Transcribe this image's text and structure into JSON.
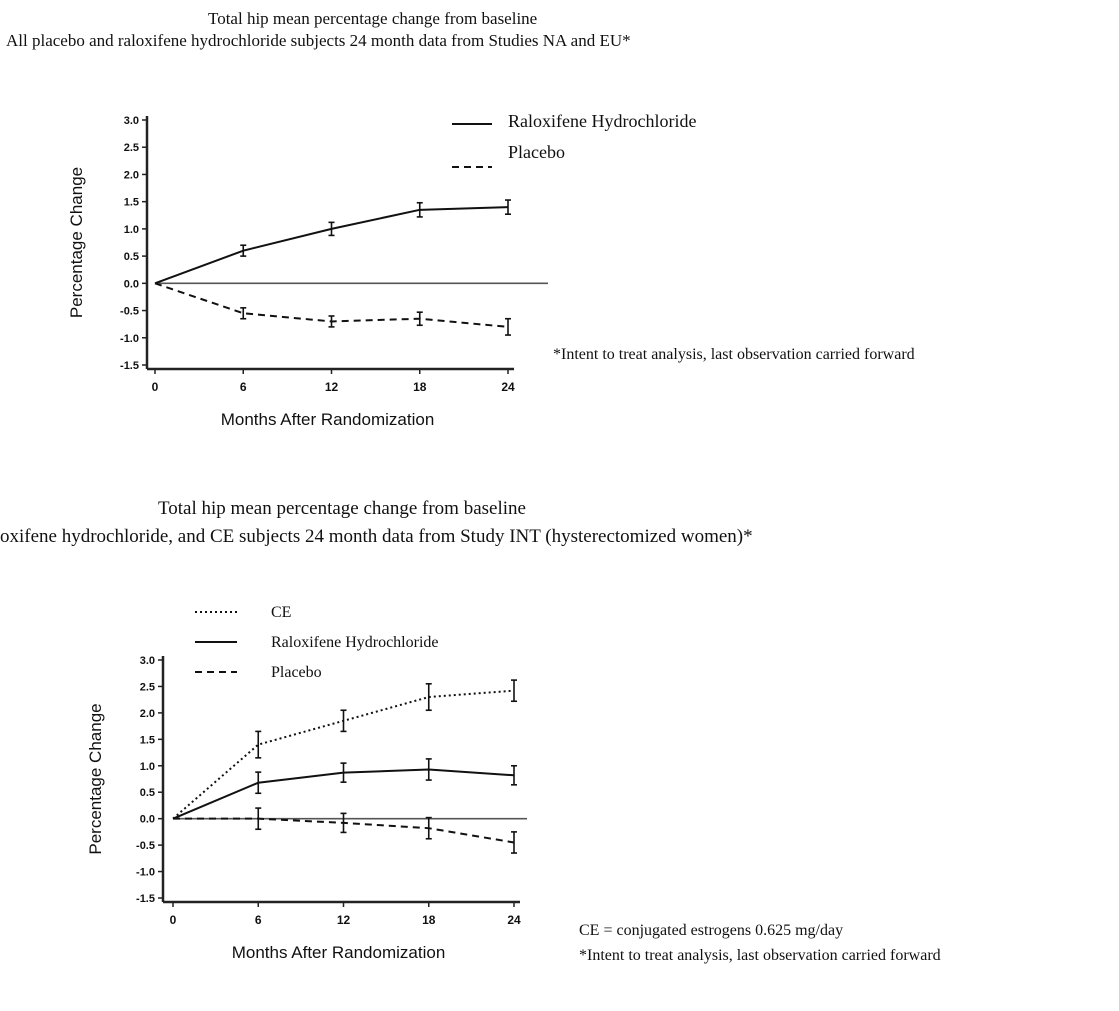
{
  "chart_data": [
    {
      "type": "line",
      "title": "Total hip mean percentage change from baseline",
      "subtitle": "All placebo and raloxifene hydrochloride subjects 24 month data from Studies NA and EU*",
      "xlabel": "Months After Randomization",
      "ylabel": "Percentage Change",
      "x": [
        0,
        6,
        12,
        18,
        24
      ],
      "x_ticks": [
        "0",
        "6",
        "12",
        "18",
        "24"
      ],
      "y_ticks": [
        "3.0",
        "2.5",
        "2.0",
        "1.5",
        "1.0",
        "0.5",
        "0.0",
        "-0.5",
        "-1.0",
        "-1.5"
      ],
      "ylim": [
        -1.5,
        3.0
      ],
      "xlim": [
        0,
        24
      ],
      "legend_position": "top-right",
      "series": [
        {
          "name": "Raloxifene Hydrochloride",
          "style": "solid",
          "values": [
            0,
            0.6,
            1.0,
            1.35,
            1.4
          ],
          "error": [
            0,
            0.1,
            0.12,
            0.13,
            0.13
          ]
        },
        {
          "name": "Placebo",
          "style": "dashed",
          "values": [
            0,
            -0.55,
            -0.7,
            -0.65,
            -0.8
          ],
          "error": [
            0,
            0.1,
            0.1,
            0.12,
            0.15
          ]
        }
      ],
      "footnote": "*Intent to treat analysis, last observation carried forward"
    },
    {
      "type": "line",
      "title": "Total hip mean percentage change from baseline",
      "subtitle": "oxifene hydrochloride, and CE subjects 24 month data from Study INT (hysterectomized women)*",
      "xlabel": "Months After Randomization",
      "ylabel": "Percentage Change",
      "x": [
        0,
        6,
        12,
        18,
        24
      ],
      "x_ticks": [
        "0",
        "6",
        "12",
        "18",
        "24"
      ],
      "y_ticks": [
        "3.0",
        "2.5",
        "2.0",
        "1.5",
        "1.0",
        "0.5",
        "0.0",
        "-0.5",
        "-1.0",
        "-1.5"
      ],
      "ylim": [
        -1.5,
        3.0
      ],
      "xlim": [
        0,
        24
      ],
      "legend_position": "top-left",
      "series": [
        {
          "name": "CE",
          "style": "dotted",
          "values": [
            0,
            1.4,
            1.85,
            2.3,
            2.42
          ],
          "error": [
            0,
            0.25,
            0.2,
            0.25,
            0.2
          ]
        },
        {
          "name": "Raloxifene Hydrochloride",
          "style": "solid",
          "values": [
            0,
            0.68,
            0.87,
            0.93,
            0.82
          ],
          "error": [
            0,
            0.2,
            0.18,
            0.2,
            0.18
          ]
        },
        {
          "name": "Placebo",
          "style": "dashed",
          "values": [
            0,
            0,
            -0.08,
            -0.18,
            -0.45
          ],
          "error": [
            0,
            0.2,
            0.18,
            0.2,
            0.2
          ]
        }
      ],
      "footnotes": [
        "CE = conjugated estrogens 0.625 mg/day",
        "*Intent to treat analysis, last observation carried forward"
      ]
    }
  ]
}
